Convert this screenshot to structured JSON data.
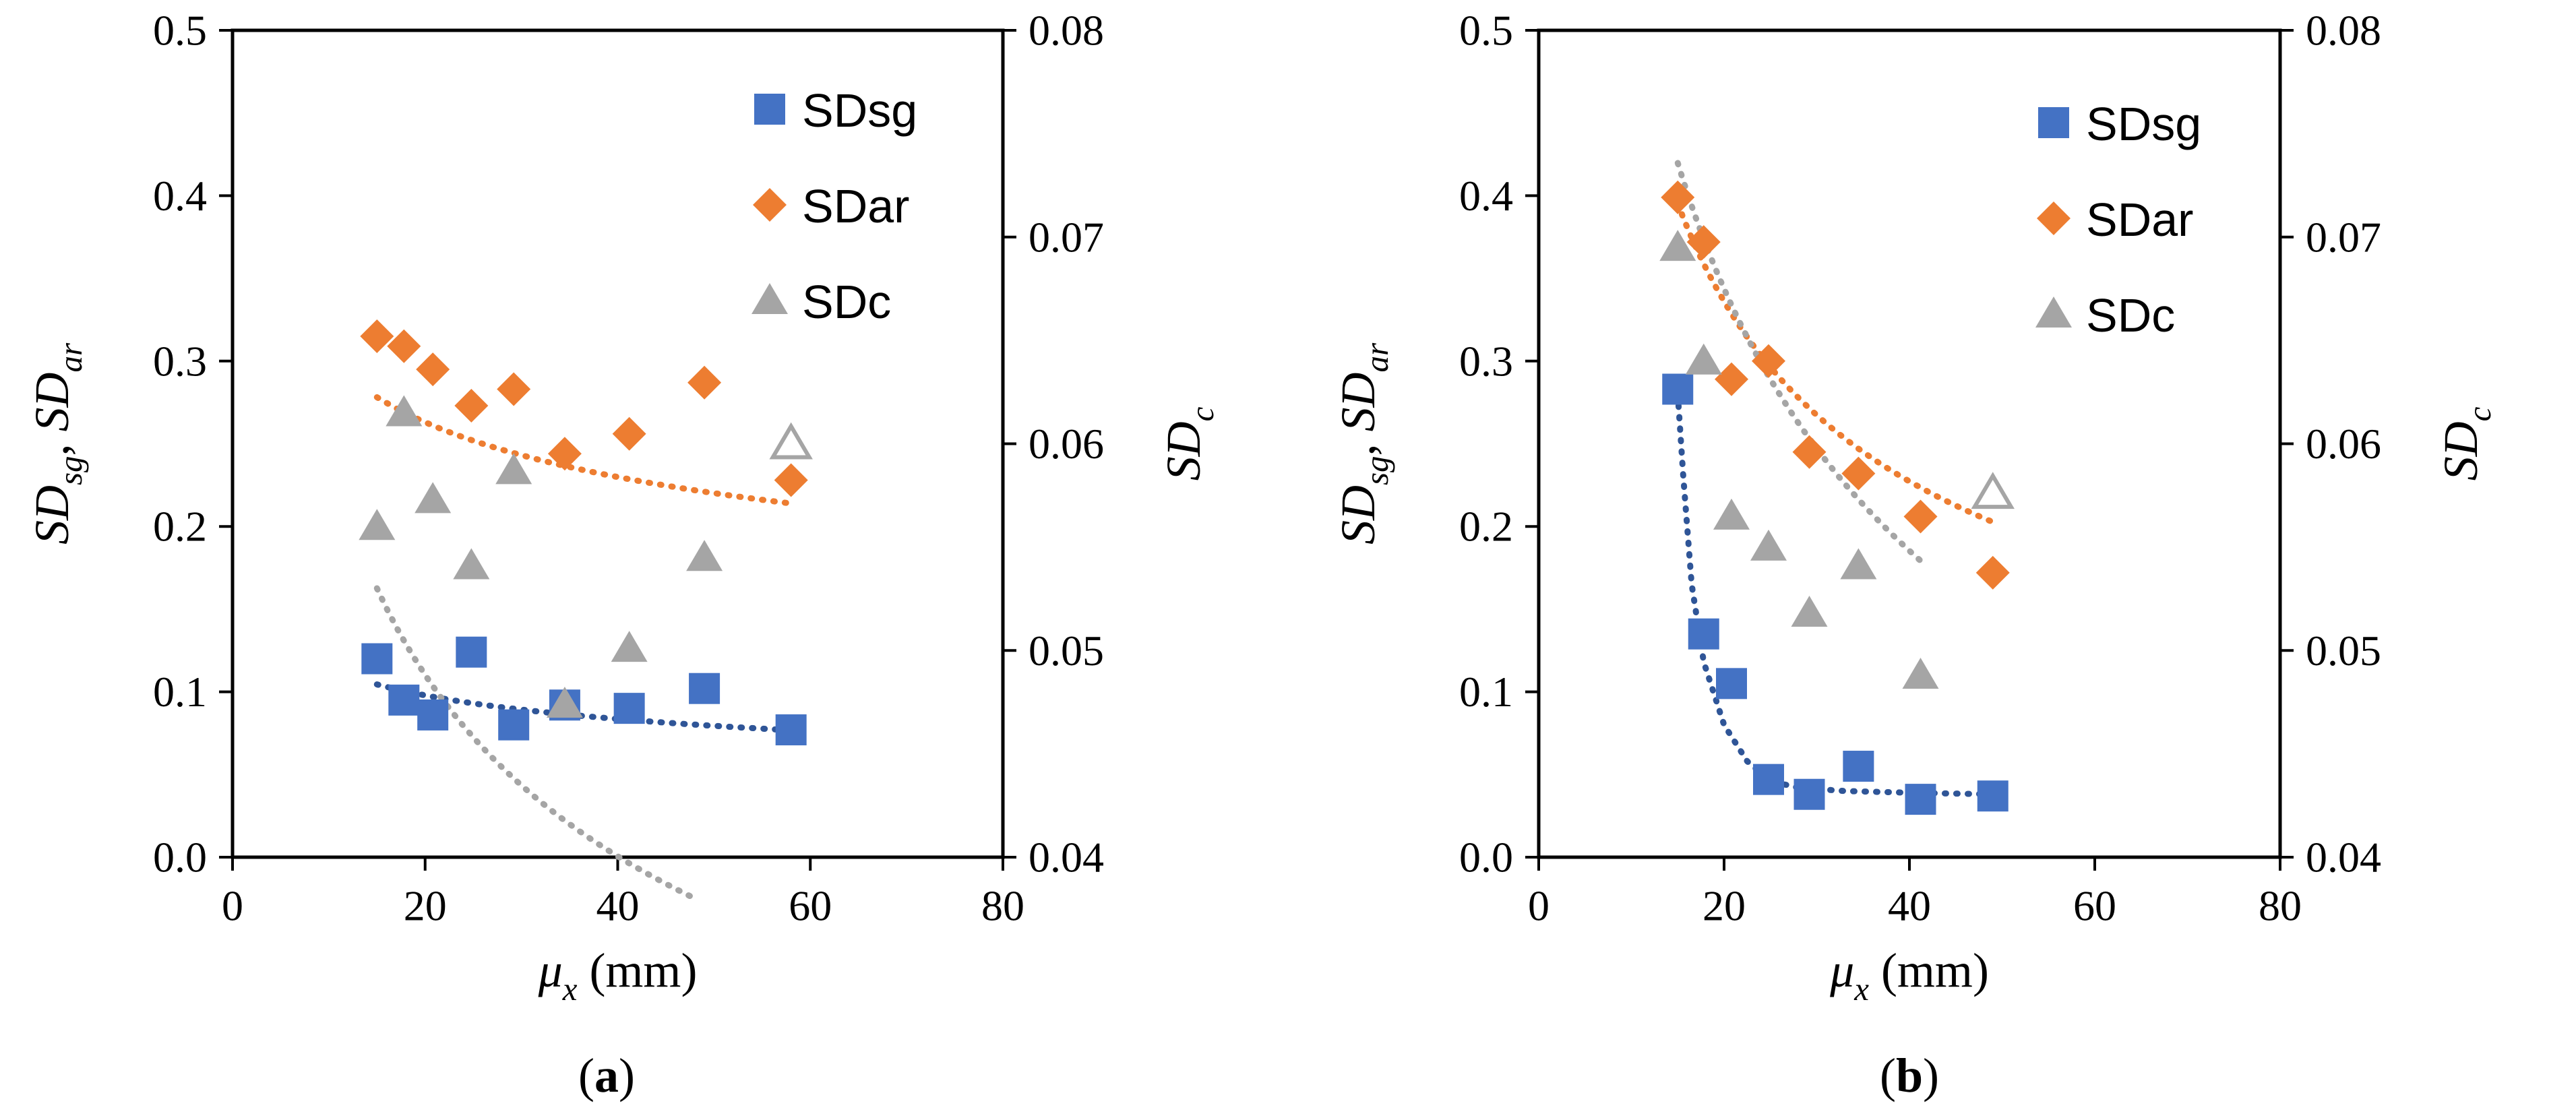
{
  "chart_data": [
    {
      "type": "scatter",
      "panel_label": "a",
      "xlabel": {
        "sym": "μ",
        "sub": "x",
        "unit": " (mm)"
      },
      "ylabel": {
        "parts": [
          [
            "SD",
            "sg"
          ],
          [
            ", ",
            ""
          ],
          [
            "SD",
            "ar"
          ]
        ]
      },
      "y2label": {
        "sym": "SD",
        "sub": "c"
      },
      "xlim": [
        0,
        80
      ],
      "xticks": [
        "0",
        "20",
        "40",
        "60",
        "80"
      ],
      "ylim": [
        0,
        0.5
      ],
      "yticks": [
        "0.0",
        "0.1",
        "0.2",
        "0.3",
        "0.4",
        "0.5"
      ],
      "y2lim": [
        0.04,
        0.08
      ],
      "y2ticks": [
        "0.04",
        "0.05",
        "0.06",
        "0.07",
        "0.08"
      ],
      "legend_position": "top-right",
      "series": [
        {
          "name": "SDsg",
          "axis": "left",
          "marker": "square",
          "color": "#4472C4",
          "x": [
            15,
            17.8,
            20.8,
            24.8,
            29.2,
            34.5,
            41.2,
            49,
            58
          ],
          "y": [
            0.12,
            0.095,
            0.086,
            0.124,
            0.08,
            0.092,
            0.09,
            0.102,
            0.077
          ],
          "trend": {
            "type": "power",
            "a": 0.1937,
            "b": -0.2279,
            "xrange": [
              15,
              58
            ]
          }
        },
        {
          "name": "SDar",
          "axis": "left",
          "marker": "diamond",
          "color": "#ED7D31",
          "x": [
            15,
            17.8,
            20.8,
            24.8,
            29.2,
            34.5,
            41.2,
            49,
            58
          ],
          "y": [
            0.315,
            0.309,
            0.295,
            0.273,
            0.283,
            0.244,
            0.256,
            0.287,
            0.228
          ],
          "trend": {
            "type": "power",
            "a": 0.4706,
            "b": -0.1942,
            "xrange": [
              15,
              58
            ]
          }
        },
        {
          "name": "SDc",
          "axis": "right",
          "marker": "triangle",
          "color": "#A5A5A5",
          "x": [
            15,
            17.8,
            20.8,
            24.8,
            29.2,
            34.5,
            41.2,
            49
          ],
          "y": [
            0.056,
            0.0615,
            0.0573,
            0.0541,
            0.0587,
            0.0474,
            0.0501,
            0.0545
          ],
          "trend": {
            "type": "power",
            "a": 0.115,
            "b": -0.286,
            "xrange": [
              15,
              48
            ]
          },
          "outliers": [
            {
              "x": 58,
              "y": 0.06
            }
          ]
        }
      ]
    },
    {
      "type": "scatter",
      "panel_label": "b",
      "xlabel": {
        "sym": "μ",
        "sub": "x",
        "unit": " (mm)"
      },
      "ylabel": {
        "parts": [
          [
            "SD",
            "sg"
          ],
          [
            ", ",
            ""
          ],
          [
            "SD",
            "ar"
          ]
        ]
      },
      "y2label": {
        "sym": "SD",
        "sub": "c"
      },
      "xlim": [
        0,
        80
      ],
      "xticks": [
        "0",
        "20",
        "40",
        "60",
        "80"
      ],
      "ylim": [
        0,
        0.5
      ],
      "yticks": [
        "0.0",
        "0.1",
        "0.2",
        "0.3",
        "0.4",
        "0.5"
      ],
      "y2lim": [
        0.04,
        0.08
      ],
      "y2ticks": [
        "0.04",
        "0.05",
        "0.06",
        "0.07",
        "0.08"
      ],
      "legend_position": "top-right",
      "series": [
        {
          "name": "SDsg",
          "axis": "left",
          "marker": "square",
          "color": "#4472C4",
          "x": [
            15,
            17.8,
            20.8,
            24.8,
            29.2,
            34.5,
            41.2,
            49
          ],
          "y": [
            0.283,
            0.135,
            0.105,
            0.047,
            0.038,
            0.055,
            0.035,
            0.037
          ],
          "trend": {
            "type": "custom",
            "pts": [
              [
                15,
                0.28
              ],
              [
                15.6,
                0.23
              ],
              [
                16.5,
                0.165
              ],
              [
                17.8,
                0.118
              ],
              [
                20,
                0.08
              ],
              [
                22.5,
                0.058
              ],
              [
                25,
                0.046
              ],
              [
                28,
                0.042
              ],
              [
                33,
                0.04
              ],
              [
                40,
                0.039
              ],
              [
                49,
                0.038
              ]
            ]
          }
        },
        {
          "name": "SDar",
          "axis": "left",
          "marker": "diamond",
          "color": "#ED7D31",
          "x": [
            15,
            17.8,
            20.8,
            24.8,
            29.2,
            34.5,
            41.2,
            49
          ],
          "y": [
            0.399,
            0.372,
            0.289,
            0.3,
            0.245,
            0.232,
            0.206,
            0.172
          ],
          "trend": {
            "type": "power",
            "a": 1.822,
            "b": -0.5643,
            "xrange": [
              15,
              49
            ]
          }
        },
        {
          "name": "SDc",
          "axis": "right",
          "marker": "triangle",
          "color": "#A5A5A5",
          "x": [
            15,
            17.8,
            20.8,
            24.8,
            29.2,
            34.5,
            41.2
          ],
          "y": [
            0.0695,
            0.064,
            0.0565,
            0.055,
            0.0518,
            0.0541,
            0.0488
          ],
          "trend": {
            "type": "power",
            "a": 0.1658,
            "b": -0.3,
            "xrange": [
              15,
              41.2
            ]
          },
          "outliers": [
            {
              "x": 49,
              "y": 0.0576
            }
          ]
        }
      ]
    }
  ]
}
